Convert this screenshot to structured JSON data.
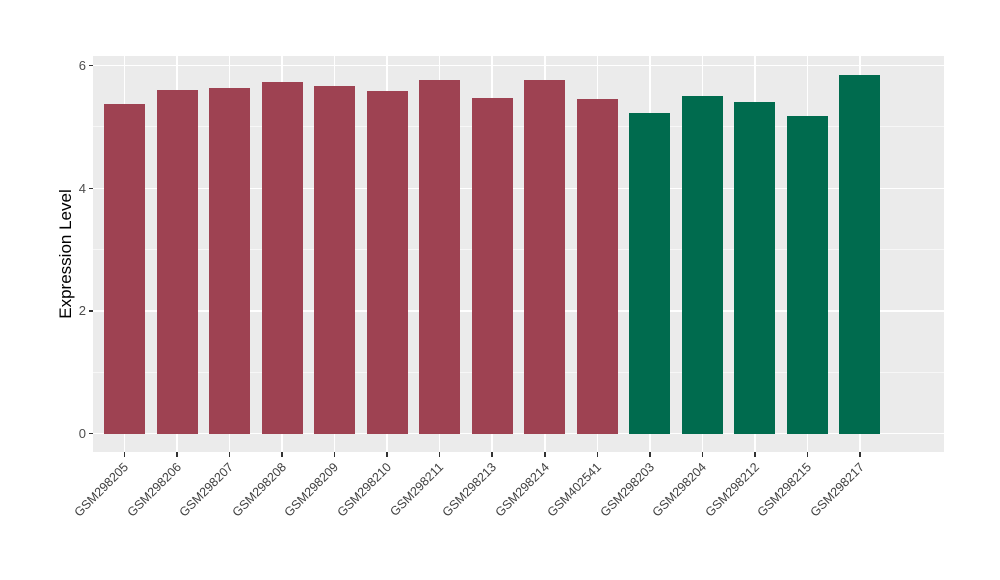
{
  "chart_data": {
    "type": "bar",
    "title": "",
    "xlabel": "",
    "ylabel": "Expression Level",
    "ylim": [
      -0.29,
      6.15
    ],
    "yticks": [
      0,
      2,
      4,
      6
    ],
    "yminor": [
      1,
      3,
      5
    ],
    "grid": true,
    "legend_position": "none",
    "categories": [
      "GSM298205",
      "GSM298206",
      "GSM298207",
      "GSM298208",
      "GSM298209",
      "GSM298210",
      "GSM298211",
      "GSM298213",
      "GSM298214",
      "GSM402541",
      "GSM298203",
      "GSM298204",
      "GSM298212",
      "GSM298215",
      "GSM298217"
    ],
    "series": [
      {
        "name": "group-maroon",
        "color": "#9E4252",
        "values": [
          5.37,
          5.6,
          5.64,
          5.74,
          5.67,
          5.58,
          5.77,
          5.48,
          5.77,
          5.45,
          null,
          null,
          null,
          null,
          null
        ]
      },
      {
        "name": "group-green",
        "color": "#006B4E",
        "values": [
          null,
          null,
          null,
          null,
          null,
          null,
          null,
          null,
          null,
          null,
          5.22,
          5.51,
          5.41,
          5.18,
          5.85
        ]
      }
    ],
    "bar_values": [
      5.37,
      5.6,
      5.64,
      5.74,
      5.67,
      5.58,
      5.77,
      5.48,
      5.77,
      5.45,
      5.22,
      5.51,
      5.41,
      5.18,
      5.85
    ],
    "bar_groups": [
      "group-maroon",
      "group-maroon",
      "group-maroon",
      "group-maroon",
      "group-maroon",
      "group-maroon",
      "group-maroon",
      "group-maroon",
      "group-maroon",
      "group-maroon",
      "group-green",
      "group-green",
      "group-green",
      "group-green",
      "group-green"
    ]
  },
  "colors": {
    "panel_background": "#EBEBEB",
    "gridline": "#FFFFFF",
    "bar_maroon": "#9E4252",
    "bar_green": "#006B4E",
    "axis_text": "#4D4D4D",
    "axis_title": "#000000",
    "tick_mark": "#333333",
    "figure_background": "#FFFFFF"
  }
}
